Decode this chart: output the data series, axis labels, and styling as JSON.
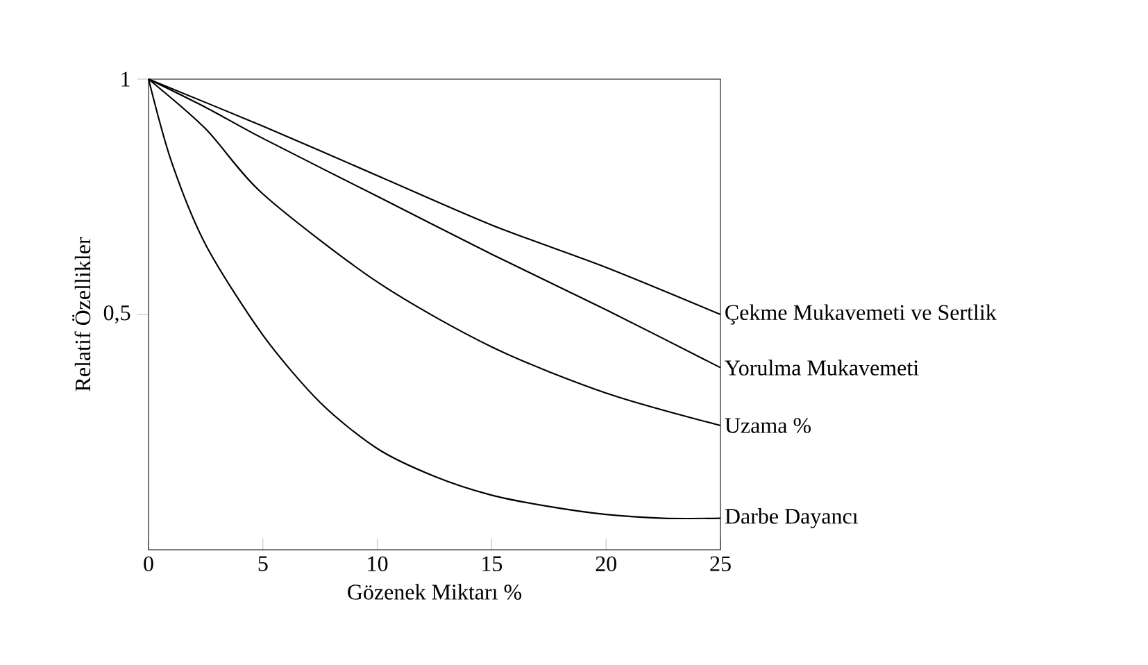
{
  "chart_data": {
    "type": "line",
    "xlabel": "Gözenek Miktarı %",
    "ylabel": "Relatif Özellikler",
    "xlim": [
      0,
      25
    ],
    "ylim": [
      0,
      1
    ],
    "xticks": [
      0,
      5,
      10,
      15,
      20,
      25
    ],
    "yticks": [
      {
        "value": 0.5,
        "label": "0,5"
      },
      1
    ],
    "grid": false,
    "legend": false,
    "marker": "none",
    "line_style": "solid",
    "series": [
      {
        "name": "Çekme Mukavemeti ve Sertlik",
        "color": "#000000",
        "x": [
          0,
          5,
          10,
          15,
          20,
          25
        ],
        "values": [
          1,
          0.9,
          0.795,
          0.69,
          0.6,
          0.5
        ]
      },
      {
        "name": "Yorulma Mukavemeti",
        "color": "#000000",
        "x": [
          0,
          2.5,
          5,
          10,
          15,
          20,
          25
        ],
        "values": [
          1,
          0.94,
          0.874,
          0.751,
          0.628,
          0.51,
          0.387
        ]
      },
      {
        "name": "Uzama %",
        "color": "#000000",
        "x": [
          0,
          2.5,
          5,
          10,
          15,
          20,
          25
        ],
        "values": [
          1,
          0.894,
          0.756,
          0.569,
          0.431,
          0.333,
          0.264
        ]
      },
      {
        "name": "Darbe Dayancı",
        "color": "#000000",
        "x": [
          0,
          1,
          2.5,
          5,
          7.5,
          10,
          12.5,
          15,
          17.5,
          20,
          22.5,
          25
        ],
        "values": [
          1,
          0.825,
          0.648,
          0.456,
          0.313,
          0.215,
          0.156,
          0.116,
          0.092,
          0.075,
          0.067,
          0.067
        ]
      }
    ]
  }
}
